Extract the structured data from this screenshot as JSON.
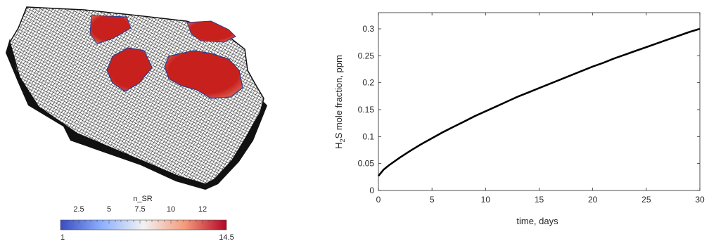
{
  "mesh_view": {
    "colorbar": {
      "title": "n_SR",
      "ticks": [
        "2.5",
        "5",
        "7.5",
        "10",
        "12"
      ],
      "min_label": "1",
      "max_label": "14.5",
      "colors": [
        "#3b4cc0",
        "#f2f2f2",
        "#b40426"
      ]
    },
    "mesh_color": "#111111",
    "region_color": "#c8211d"
  },
  "chart_data": {
    "type": "line",
    "xlabel": "time, days",
    "ylabel_parts": [
      "H",
      "2",
      "S mole fraction, ppm"
    ],
    "xlim": [
      0,
      30
    ],
    "ylim": [
      0,
      0.33
    ],
    "xticks": [
      0,
      5,
      10,
      15,
      20,
      25,
      30
    ],
    "yticks": [
      0,
      0.05,
      0.1,
      0.15,
      0.2,
      0.25,
      0.3
    ],
    "grid": false,
    "series": [
      {
        "x": [
          0,
          0.5,
          1,
          2,
          3,
          4,
          5,
          6,
          7,
          8,
          9,
          10,
          11,
          12,
          13,
          14,
          15,
          16,
          17,
          18,
          19,
          20,
          21,
          22,
          23,
          24,
          25,
          26,
          27,
          28,
          29,
          30
        ],
        "y": [
          0.027,
          0.039,
          0.047,
          0.061,
          0.074,
          0.086,
          0.097,
          0.108,
          0.118,
          0.128,
          0.138,
          0.147,
          0.156,
          0.165,
          0.174,
          0.182,
          0.19,
          0.198,
          0.206,
          0.214,
          0.222,
          0.23,
          0.237,
          0.245,
          0.252,
          0.259,
          0.266,
          0.273,
          0.28,
          0.287,
          0.294,
          0.3
        ],
        "color": "#000000"
      }
    ]
  }
}
